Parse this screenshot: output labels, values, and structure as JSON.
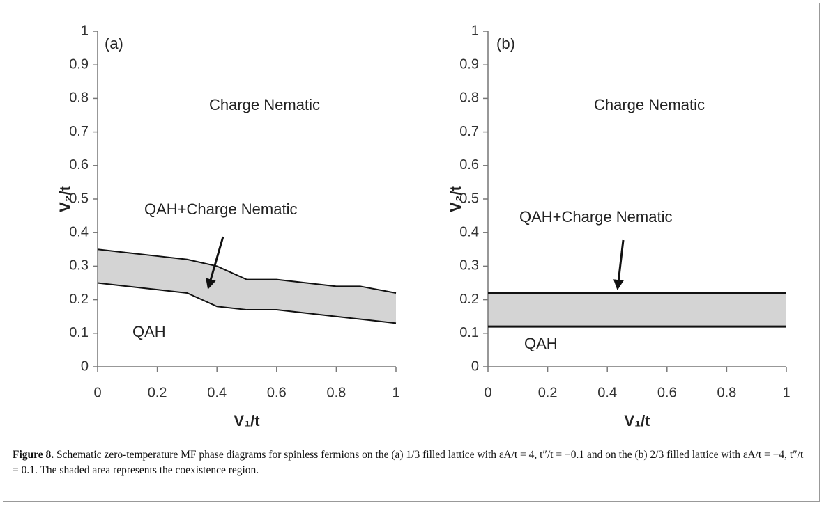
{
  "chart_data": [
    {
      "type": "line",
      "panel_label": "(a)",
      "xlabel": "V₁/t",
      "ylabel": "V₂/t",
      "xlim": [
        0,
        1
      ],
      "ylim": [
        0,
        1
      ],
      "xticks": [
        0,
        0.2,
        0.4,
        0.6,
        0.8,
        1
      ],
      "yticks": [
        0,
        0.1,
        0.2,
        0.3,
        0.4,
        0.5,
        0.6,
        0.7,
        0.8,
        0.9,
        1
      ],
      "fill_between": true,
      "fill_color": "#d4d4d4",
      "series": [
        {
          "color": "#111111",
          "x": [
            0,
            0.1,
            0.2,
            0.3,
            0.4,
            0.45,
            0.5,
            0.6,
            0.7,
            0.8,
            0.88,
            1
          ],
          "values": [
            0.35,
            0.34,
            0.33,
            0.32,
            0.3,
            0.28,
            0.26,
            0.26,
            0.25,
            0.24,
            0.24,
            0.22
          ]
        },
        {
          "color": "#111111",
          "x": [
            0,
            0.1,
            0.2,
            0.3,
            0.35,
            0.4,
            0.5,
            0.6,
            0.7,
            0.8,
            0.9,
            1
          ],
          "values": [
            0.25,
            0.24,
            0.23,
            0.22,
            0.2,
            0.18,
            0.17,
            0.17,
            0.16,
            0.15,
            0.14,
            0.13
          ]
        }
      ],
      "annotations": [
        "Charge Nematic",
        "QAH+Charge Nematic",
        "QAH"
      ]
    },
    {
      "type": "line",
      "panel_label": "(b)",
      "xlabel": "V₁/t",
      "ylabel": "V₂/t",
      "xlim": [
        0,
        1
      ],
      "ylim": [
        0,
        1
      ],
      "xticks": [
        0,
        0.2,
        0.4,
        0.6,
        0.8,
        1
      ],
      "yticks": [
        0,
        0.1,
        0.2,
        0.3,
        0.4,
        0.5,
        0.6,
        0.7,
        0.8,
        0.9,
        1
      ],
      "fill_between": true,
      "fill_color": "#d4d4d4",
      "series": [
        {
          "color": "#111111",
          "x": [
            0,
            1
          ],
          "values": [
            0.22,
            0.22
          ]
        },
        {
          "color": "#111111",
          "x": [
            0,
            1
          ],
          "values": [
            0.12,
            0.12
          ]
        }
      ],
      "annotations": [
        "Charge Nematic",
        "QAH+Charge Nematic",
        "QAH"
      ]
    }
  ],
  "caption": {
    "label": "Figure 8.",
    "text": "Schematic zero-temperature MF phase diagrams for spinless fermions on the (a) 1/3 filled lattice with εA/t = 4, t″/t = −0.1 and on the (b) 2/3 filled lattice with εA/t = −4, t″/t = 0.1. The shaded area represents the coexistence region."
  }
}
